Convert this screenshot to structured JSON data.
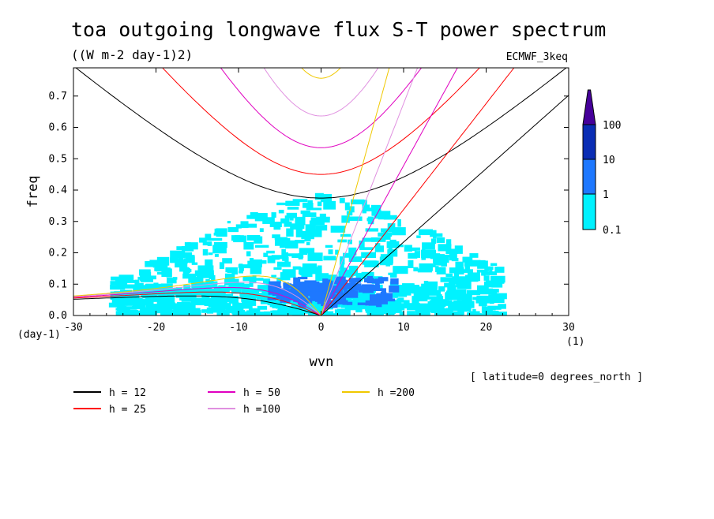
{
  "chart_data": {
    "type": "heatmap",
    "title": "toa outgoing longwave flux S-T power spectrum",
    "subtitle": "((W m-2 day-1)2)",
    "model_label": "ECMWF_3keq",
    "xlabel": "wvn",
    "ylabel": "freq",
    "x_unit": "(1)",
    "y_unit": "(day-1)",
    "xlim": [
      -30,
      30
    ],
    "ylim": [
      0,
      0.79
    ],
    "xticks": [
      "-30",
      "-20",
      "-10",
      "0",
      "10",
      "20",
      "30"
    ],
    "yticks": [
      "0.0",
      "0.1",
      "0.2",
      "0.3",
      "0.4",
      "0.5",
      "0.6",
      "0.7"
    ],
    "annotation": "[ latitude=0 degrees_north ]",
    "colorbar": {
      "labels": [
        "0.1",
        "1",
        "10",
        "100"
      ],
      "levels": [
        0.1,
        1,
        10,
        100
      ],
      "colors": [
        "#00f2ff",
        "#1e78ff",
        "#0a2db4",
        "#46009a"
      ]
    },
    "spectrum_regions": [
      {
        "level": 1,
        "x_range": [
          -3,
          9
        ],
        "y_range": [
          0.03,
          0.12
        ]
      },
      {
        "level": 1,
        "x_range": [
          -6,
          3
        ],
        "y_range": [
          0.05,
          0.1
        ]
      },
      {
        "level": 0,
        "x_range": [
          -25,
          22
        ],
        "y_range": [
          0,
          0.36
        ]
      }
    ],
    "dispersion_curves": [
      {
        "name": "h = 12",
        "h": 12,
        "color": "#000000"
      },
      {
        "name": "h = 25",
        "h": 25,
        "color": "#ff0000"
      },
      {
        "name": "h = 50",
        "h": 50,
        "color": "#e000c0"
      },
      {
        "name": "h =100",
        "h": 100,
        "color": "#e090e0"
      },
      {
        "name": "h =200",
        "h": 200,
        "color": "#f0c800"
      }
    ],
    "grid": false
  }
}
